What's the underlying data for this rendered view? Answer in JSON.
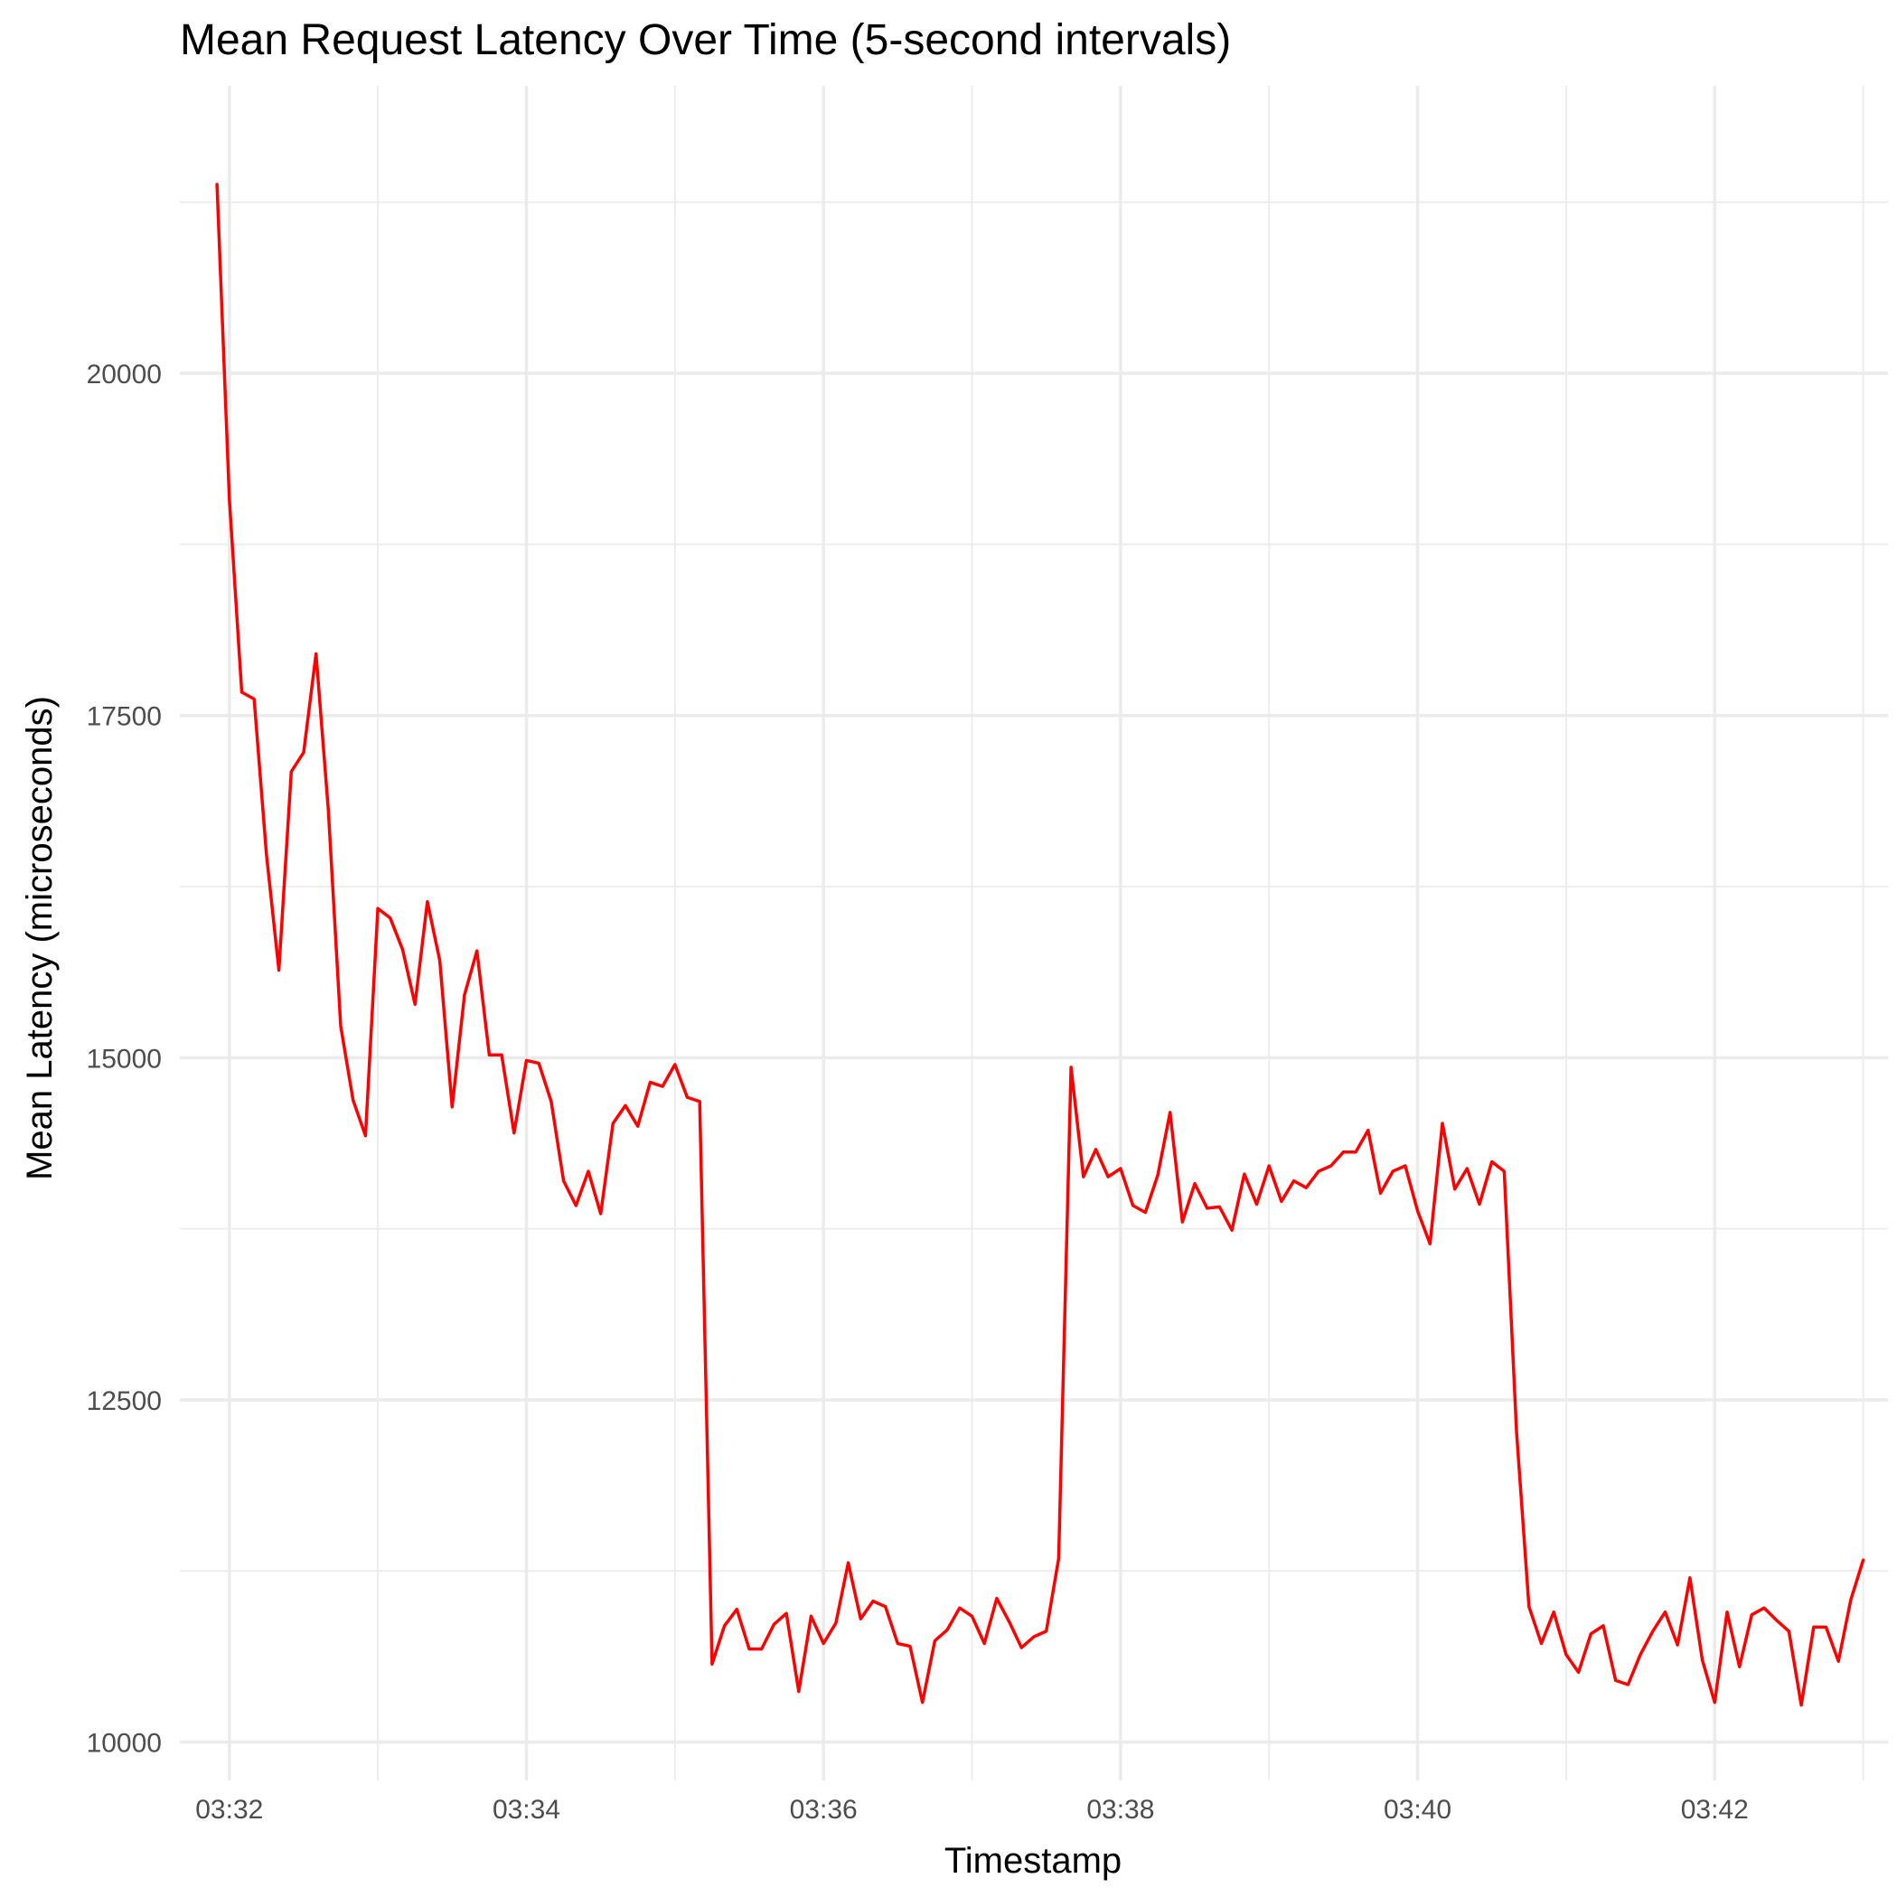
{
  "chart_data": {
    "type": "line",
    "title": "Mean Request Latency Over Time (5-second intervals)",
    "xlabel": "Timestamp",
    "ylabel": "Mean Latency (microseconds)",
    "x_start": "03:31:55",
    "x_step_seconds": 5,
    "xlim": [
      "03:31:40",
      "03:43:10"
    ],
    "ylim": [
      9720,
      22100
    ],
    "x_ticks": [
      "03:32",
      "03:34",
      "03:36",
      "03:38",
      "03:40",
      "03:42"
    ],
    "y_ticks": [
      10000,
      12500,
      15000,
      17500,
      20000
    ],
    "grid": true,
    "legend": "none",
    "color": "#ff0000",
    "series": [
      {
        "values": [
          21380,
          19080,
          17670,
          17620,
          16480,
          15640,
          17090,
          17230,
          17950,
          16810,
          15230,
          14690,
          14430,
          16090,
          16020,
          15790,
          15390,
          16140,
          15710,
          14640,
          15460,
          15780,
          15020,
          15020,
          14450,
          14980,
          14960,
          14680,
          14100,
          13920,
          14170,
          13860,
          14520,
          14650,
          14500,
          14820,
          14790,
          14950,
          14710,
          14680,
          10570,
          10850,
          10970,
          10680,
          10680,
          10860,
          10940,
          10370,
          10920,
          10720,
          10870,
          11310,
          10900,
          11030,
          10990,
          10720,
          10700,
          10290,
          10740,
          10820,
          10980,
          10920,
          10720,
          11050,
          10880,
          10690,
          10770,
          10810,
          11340,
          14930,
          14130,
          14330,
          14130,
          14190,
          13920,
          13870,
          14140,
          14600,
          13800,
          14080,
          13900,
          13910,
          13740,
          14150,
          13930,
          14210,
          13950,
          14100,
          14050,
          14170,
          14210,
          14310,
          14310,
          14470,
          14010,
          14170,
          14210,
          13880,
          13640,
          14520,
          14040,
          14190,
          13930,
          14240,
          14170,
          12260,
          10990,
          10720,
          10950,
          10640,
          10510,
          10790,
          10850,
          10450,
          10420,
          10640,
          10810,
          10950,
          10710,
          11200,
          10600,
          10290,
          10950,
          10550,
          10930,
          10980,
          10890,
          10810,
          10270,
          10840,
          10840,
          10590,
          11040,
          11330
        ]
      }
    ]
  }
}
